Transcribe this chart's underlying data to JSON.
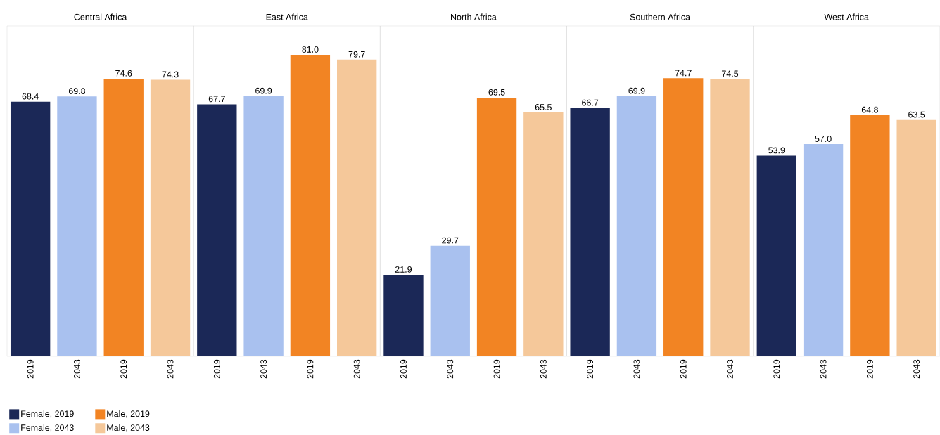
{
  "chart_data": [
    {
      "type": "bar",
      "title": "Central Africa",
      "categories": [
        "2019",
        "2043",
        "2019",
        "2043"
      ],
      "legend": "bottom left",
      "series": [
        {
          "name": "Female, 2019",
          "color": "#1b2857",
          "values": [
            68.4,
            null,
            null,
            null
          ],
          "value_labels": [
            "68.4",
            null,
            null,
            null
          ]
        },
        {
          "name": "Female, 2043",
          "color": "#a9c1ef",
          "values": [
            null,
            69.8,
            null,
            null
          ],
          "value_labels": [
            null,
            "69.8",
            null,
            null
          ]
        },
        {
          "name": "Male, 2019",
          "color": "#f28423",
          "values": [
            null,
            null,
            74.6,
            null
          ],
          "value_labels": [
            null,
            null,
            "74.6",
            null
          ]
        },
        {
          "name": "Male, 2043",
          "color": "#f5c89a",
          "values": [
            null,
            null,
            null,
            74.3
          ],
          "value_labels": [
            null,
            null,
            null,
            "74.3"
          ]
        }
      ]
    },
    {
      "type": "bar",
      "title": "East Africa",
      "categories": [
        "2019",
        "2043",
        "2019",
        "2043"
      ],
      "series": [
        {
          "color": "#1b2857",
          "values": [
            67.7,
            null,
            null,
            null
          ],
          "value_labels": [
            "67.7",
            null,
            null,
            null
          ]
        },
        {
          "color": "#a9c1ef",
          "values": [
            null,
            69.9,
            null,
            null
          ],
          "value_labels": [
            null,
            "69.9",
            null,
            null
          ]
        },
        {
          "color": "#f28423",
          "values": [
            null,
            null,
            81.0,
            null
          ],
          "value_labels": [
            null,
            null,
            "81.0",
            null
          ]
        },
        {
          "color": "#f5c89a",
          "values": [
            null,
            null,
            null,
            79.7
          ],
          "value_labels": [
            null,
            null,
            null,
            "79.7"
          ]
        }
      ]
    },
    {
      "type": "bar",
      "title": "North Africa",
      "categories": [
        "2019",
        "2043",
        "2019",
        "2043"
      ],
      "series": [
        {
          "color": "#1b2857",
          "values": [
            21.9,
            null,
            null,
            null
          ],
          "value_labels": [
            "21.9",
            null,
            null,
            null
          ]
        },
        {
          "color": "#a9c1ef",
          "values": [
            null,
            29.7,
            null,
            null
          ],
          "value_labels": [
            null,
            "29.7",
            null,
            null
          ]
        },
        {
          "color": "#f28423",
          "values": [
            null,
            null,
            69.5,
            null
          ],
          "value_labels": [
            null,
            null,
            "69.5",
            null
          ]
        },
        {
          "color": "#f5c89a",
          "values": [
            null,
            null,
            null,
            65.5
          ],
          "value_labels": [
            null,
            null,
            null,
            "65.5"
          ]
        }
      ]
    },
    {
      "type": "bar",
      "title": "Southern Africa",
      "categories": [
        "2019",
        "2043",
        "2019",
        "2043"
      ],
      "series": [
        {
          "color": "#1b2857",
          "values": [
            66.7,
            null,
            null,
            null
          ],
          "value_labels": [
            "66.7",
            null,
            null,
            null
          ]
        },
        {
          "color": "#a9c1ef",
          "values": [
            null,
            69.9,
            null,
            null
          ],
          "value_labels": [
            null,
            "69.9",
            null,
            null
          ]
        },
        {
          "color": "#f28423",
          "values": [
            null,
            null,
            74.7,
            null
          ],
          "value_labels": [
            null,
            null,
            "74.7",
            null
          ]
        },
        {
          "color": "#f5c89a",
          "values": [
            null,
            null,
            null,
            74.5
          ],
          "value_labels": [
            null,
            null,
            null,
            "74.5"
          ]
        }
      ]
    },
    {
      "type": "bar",
      "title": "West Africa",
      "categories": [
        "2019",
        "2043",
        "2019",
        "2043"
      ],
      "series": [
        {
          "color": "#1b2857",
          "values": [
            53.9,
            null,
            null,
            null
          ],
          "value_labels": [
            "53.9",
            null,
            null,
            null
          ]
        },
        {
          "color": "#a9c1ef",
          "values": [
            null,
            57.0,
            null,
            null
          ],
          "value_labels": [
            null,
            "57.0",
            null,
            null
          ]
        },
        {
          "color": "#f28423",
          "values": [
            null,
            null,
            64.8,
            null
          ],
          "value_labels": [
            null,
            null,
            "64.8",
            null
          ]
        },
        {
          "color": "#f5c89a",
          "values": [
            null,
            null,
            null,
            63.5
          ],
          "value_labels": [
            null,
            null,
            null,
            "63.5"
          ]
        }
      ]
    }
  ]
}
